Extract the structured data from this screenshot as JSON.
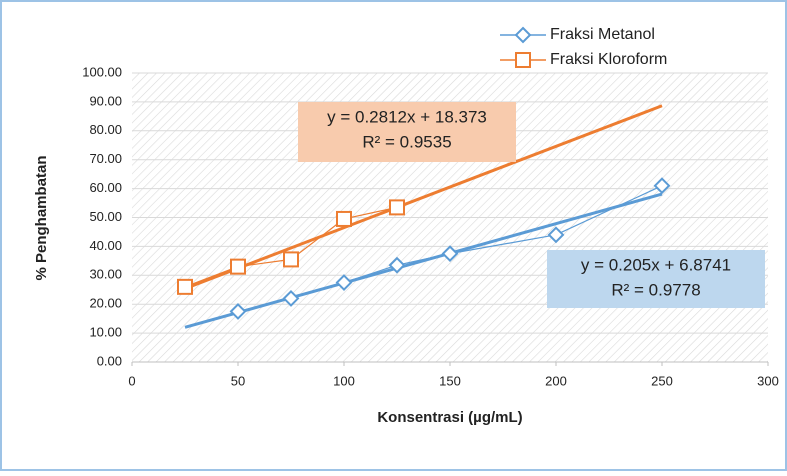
{
  "chart_data": {
    "type": "scatter",
    "x_label": "Konsentrasi (µg/mL)",
    "y_label": "% Penghambatan",
    "xlim": [
      0,
      300
    ],
    "xticks": [
      0,
      50,
      100,
      150,
      200,
      250,
      300
    ],
    "ylim": [
      0,
      100
    ],
    "yticks": [
      {
        "value": 0,
        "label": "0.00"
      },
      {
        "value": 10,
        "label": "10.00"
      },
      {
        "value": 20,
        "label": "20.00"
      },
      {
        "value": 30,
        "label": "30.00"
      },
      {
        "value": 40,
        "label": "40.00"
      },
      {
        "value": 50,
        "label": "50.00"
      },
      {
        "value": 60,
        "label": "60.00"
      },
      {
        "value": 70,
        "label": "70.00"
      },
      {
        "value": 80,
        "label": "80.00"
      },
      {
        "value": 90,
        "label": "90.00"
      },
      {
        "value": 100,
        "label": "100.00"
      }
    ],
    "grid": true,
    "legend": "top-right",
    "series": [
      {
        "name": "Fraksi Metanol",
        "color": "#5b9bd5",
        "marker": "diamond",
        "x": [
          50,
          75,
          100,
          125,
          150,
          200,
          250
        ],
        "values": [
          17.5,
          22,
          27.5,
          33.5,
          37.5,
          44,
          61
        ]
      },
      {
        "name": "Fraksi Kloroform",
        "color": "#ed7d31",
        "marker": "square",
        "x": [
          25,
          50,
          75,
          100,
          125
        ],
        "values": [
          26,
          33,
          35.5,
          49.5,
          53.5
        ]
      }
    ],
    "trendlines": [
      {
        "color": "#5b9bd5",
        "x": [
          25,
          250
        ],
        "values": [
          12.0,
          58.12
        ]
      },
      {
        "color": "#ed7d31",
        "x": [
          25,
          250
        ],
        "values": [
          25.4,
          88.67
        ]
      }
    ],
    "annotations": [
      {
        "lines": [
          "y = 0.205x + 6.8741",
          "R² = 0.9778"
        ],
        "fill": "#bdd7ee"
      },
      {
        "lines": [
          "y = 0.2812x + 18.373",
          "R² = 0.9535"
        ],
        "fill": "#f8cbad"
      }
    ]
  }
}
